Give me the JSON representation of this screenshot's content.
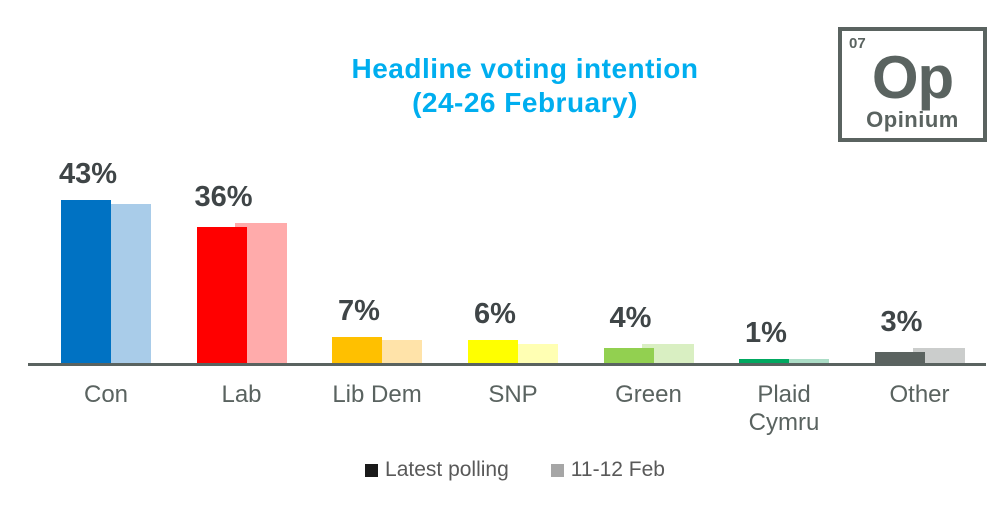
{
  "title": {
    "line1": "Headline voting intention",
    "line2": "(24-26 February)",
    "color": "#00AEEF"
  },
  "logo": {
    "number": "07",
    "symbol": "Op",
    "name": "Opinium",
    "color": "#5A6360"
  },
  "legend": {
    "items": [
      {
        "label": "Latest polling",
        "swatch_color": "#1A1A1A"
      },
      {
        "label": "11-12 Feb",
        "swatch_color": "#A6A6A6"
      }
    ]
  },
  "chart_data": {
    "type": "bar",
    "title": "Headline voting intention (24-26 February)",
    "categories": [
      "Con",
      "Lab",
      "Lib Dem",
      "SNP",
      "Green",
      "Plaid Cymru",
      "Other"
    ],
    "series": [
      {
        "name": "Latest polling",
        "values": [
          43,
          36,
          7,
          6,
          4,
          1,
          3
        ],
        "colors": [
          "#0072C3",
          "#FF0000",
          "#FFC000",
          "#FFFF00",
          "#92D050",
          "#00A860",
          "#5B6360"
        ]
      },
      {
        "name": "11-12 Feb",
        "values": [
          42,
          37,
          6,
          5,
          5,
          1,
          4
        ],
        "colors": [
          "#A9CCE9",
          "#FFABAB",
          "#FFE3A9",
          "#FFFFB3",
          "#D9EFC2",
          "#ABDDC6",
          "#CBCDCC"
        ]
      }
    ],
    "data_labels": [
      "43%",
      "36%",
      "7%",
      "6%",
      "4%",
      "1%",
      "3%"
    ],
    "value_unit": "%",
    "ylim": [
      0,
      45
    ],
    "grid": false,
    "y_axis_visible": false,
    "legend_position": "bottom",
    "axis_line_color": "#5A6360",
    "data_label_color": "#3F4547",
    "category_label_color": "#5A6360"
  }
}
